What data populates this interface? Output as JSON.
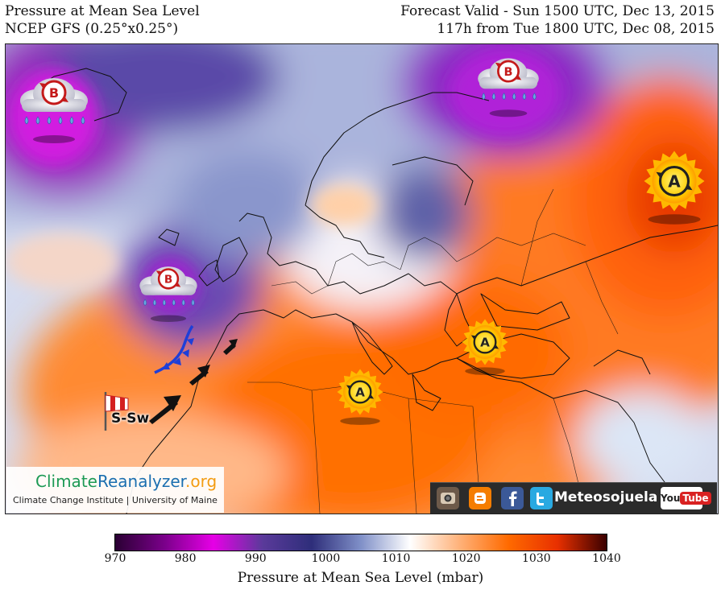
{
  "header": {
    "title": "Pressure at Mean Sea Level",
    "model": "NCEP GFS (0.25°x0.25°)",
    "valid": "Forecast Valid - Sun 1500 UTC, Dec 13, 2015",
    "lead": "117h from Tue 1800 UTC, Dec 08, 2015"
  },
  "map": {
    "lows": [
      {
        "label": "B"
      },
      {
        "label": "B"
      },
      {
        "label": "B"
      }
    ],
    "highs": [
      {
        "label": "A"
      },
      {
        "label": "A"
      },
      {
        "label": "A"
      }
    ],
    "wind_label": "S-Sw",
    "icons": [
      "storm-cloud-icon",
      "sun-icon",
      "windsock-icon",
      "wind-arrow-icon",
      "cold-front-icon"
    ]
  },
  "logo": {
    "name_part1": "Climate",
    "name_part2": "Reanalyzer",
    "name_part3": ".org",
    "sub": "Climate Change Institute | University of Maine"
  },
  "social": {
    "name": "Meteosojuela",
    "youtube_left": "You",
    "youtube_right": "Tube",
    "icons": [
      "instagram-icon",
      "blogger-icon",
      "facebook-icon",
      "twitter-icon",
      "youtube-icon"
    ]
  },
  "colorbar": {
    "title": "Pressure at Mean Sea Level (mbar)",
    "min": 970,
    "max": 1040,
    "ticks": [
      "970",
      "980",
      "990",
      "1000",
      "1010",
      "1020",
      "1030",
      "1040"
    ],
    "stops": [
      "#2a0033",
      "#7a008a",
      "#e600e6",
      "#5a3a9a",
      "#2e2e7a",
      "#8090c8",
      "#ffffff",
      "#ffb27a",
      "#ff6a00",
      "#e83000",
      "#3a0000"
    ]
  }
}
